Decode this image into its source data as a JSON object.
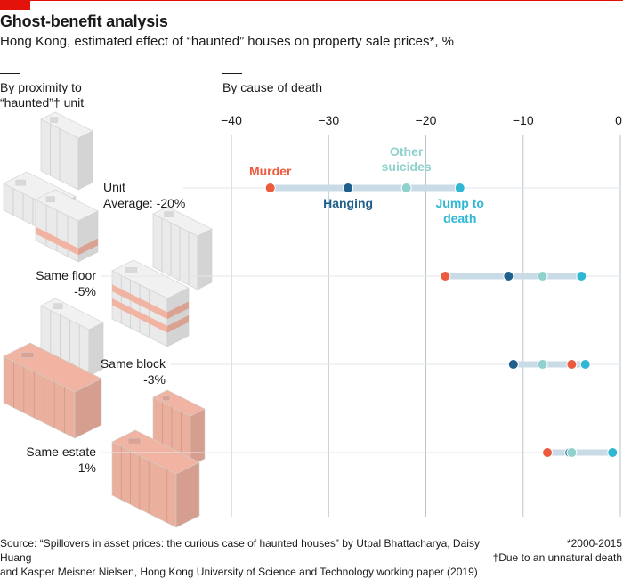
{
  "title": "Ghost-benefit analysis",
  "subtitle": "Hong Kong, estimated effect of “haunted” houses on property sale prices*, %",
  "left_header_line1": "By proximity to",
  "left_header_line2": "“haunted”† unit",
  "right_header": "By cause of death",
  "source_line1": "Source: “Spillovers in asset prices: the curious case of haunted houses” by Utpal Bhattacharya, Daisy Huang",
  "source_line2": "and Kasper Meisner Nielsen, Hong Kong University of Science and Technology working paper (2019)",
  "note1": "*2000-2015",
  "note2": "†Due to an unnatural death",
  "colors": {
    "accent": "#e3120b",
    "murder": "#eb5c3f",
    "hanging": "#1f5f8b",
    "other_suicides": "#8fd1cc",
    "jump_to_death": "#2fb7d4",
    "bar": "#c9dbe6",
    "grid": "#b7c6cf",
    "building_white": "#f1f1f1",
    "building_pink": "#f2b4a2"
  },
  "chart_data": {
    "type": "dot-range",
    "title": "By cause of death",
    "xlim": [
      -40,
      0
    ],
    "xticks": [
      -40,
      -30,
      -20,
      -10,
      0
    ],
    "categories": [
      "Unit",
      "Same floor",
      "Same block",
      "Same estate"
    ],
    "category_values": [
      "Average: -20%",
      "-5%",
      "-3%",
      "-1%"
    ],
    "series": [
      {
        "name": "Murder",
        "values": [
          -36,
          -18,
          -5,
          -7.5
        ]
      },
      {
        "name": "Hanging",
        "values": [
          -28,
          -11.5,
          -11,
          -5.2
        ]
      },
      {
        "name": "Other suicides",
        "values": [
          -22,
          -8,
          -8,
          -5
        ]
      },
      {
        "name": "Jump to death",
        "values": [
          -16.5,
          -4,
          -3.6,
          -0.8
        ]
      }
    ],
    "annotations": [
      {
        "text": "Murder",
        "series": "Murder"
      },
      {
        "text": "Hanging",
        "series": "Hanging"
      },
      {
        "text": "Other suicides",
        "series": "Other suicides"
      },
      {
        "text": "Jump to death",
        "series": "Jump to death"
      }
    ]
  }
}
